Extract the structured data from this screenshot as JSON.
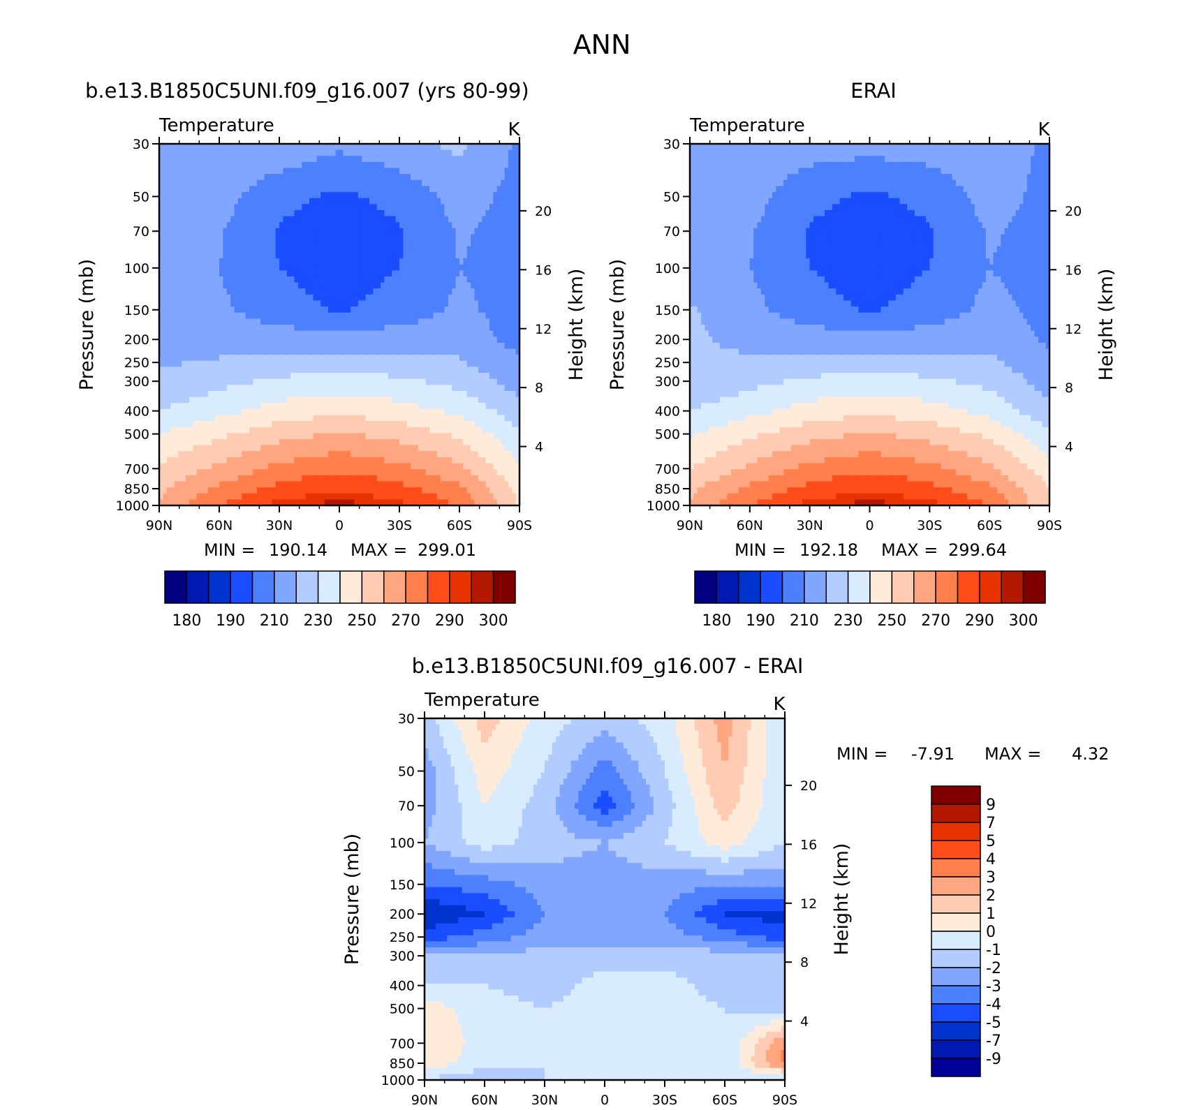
{
  "figure": {
    "title": "ANN"
  },
  "colors": {
    "abs_palette": [
      "#000080",
      "#0019b3",
      "#0033cc",
      "#1a4dff",
      "#4d80ff",
      "#80a6ff",
      "#b3ccff",
      "#d9ebff",
      "#ffebd9",
      "#ffccb3",
      "#ffa680",
      "#ff804d",
      "#ff4d1a",
      "#e63300",
      "#b31900",
      "#800000"
    ],
    "diff_palette": [
      "#000099",
      "#0019b3",
      "#0033cc",
      "#1a4dff",
      "#4d80ff",
      "#80a6ff",
      "#b3ccff",
      "#d9ebff",
      "#ffebd9",
      "#ffccb3",
      "#ffa680",
      "#ff804d",
      "#ff4d1a",
      "#e63300",
      "#b31900",
      "#800000"
    ]
  },
  "axes_common": {
    "var_label": "Temperature",
    "units": "K",
    "ylabel": "Pressure (mb)",
    "y2label": "Height (km)",
    "xticks": [
      "90N",
      "60N",
      "30N",
      "0",
      "30S",
      "60S",
      "90S"
    ],
    "yticks": [
      "30",
      "50",
      "70",
      "100",
      "150",
      "200",
      "250",
      "300",
      "400",
      "500",
      "700",
      "850",
      "1000"
    ],
    "y2ticks": [
      "20",
      "16",
      "12",
      "8",
      "4"
    ]
  },
  "panels": {
    "model": {
      "title": "b.e13.B1850C5UNI.f09_g16.007 (yrs 80-99)",
      "min_label": "MIN =",
      "min_value": "190.14",
      "max_label": "MAX =",
      "max_value": "299.01"
    },
    "obs": {
      "title": "ERAI",
      "min_label": "MIN =",
      "min_value": "192.18",
      "max_label": "MAX =",
      "max_value": "299.64"
    },
    "diff": {
      "title": "b.e13.B1850C5UNI.f09_g16.007 - ERAI",
      "min_label": "MIN =",
      "min_value": "-7.91",
      "max_label": "MAX =",
      "max_value": "4.32"
    }
  },
  "colorbars": {
    "abs_labels": [
      "180",
      "190",
      "210",
      "230",
      "250",
      "270",
      "290",
      "300"
    ],
    "diff_labels": [
      "9",
      "7",
      "5",
      "4",
      "3",
      "2",
      "1",
      "0",
      "-1",
      "-2",
      "-3",
      "-4",
      "-5",
      "-7",
      "-9"
    ]
  },
  "chart_data": [
    {
      "type": "heatmap",
      "title": "b.e13.B1850C5UNI.f09_g16.007 (yrs 80-99)",
      "subtitle": "Temperature",
      "units": "K",
      "xlabel": "",
      "ylabel": "Pressure (mb)",
      "y2label": "Height (km)",
      "x": [
        "90N",
        "60N",
        "30N",
        "0",
        "30S",
        "60S",
        "90S"
      ],
      "y": [
        30,
        50,
        70,
        100,
        150,
        200,
        250,
        300,
        400,
        500,
        700,
        850,
        1000
      ],
      "y_scale": "log",
      "values": [
        [
          215,
          217,
          218,
          212,
          217,
          222,
          208
        ],
        [
          212,
          214,
          203,
          198,
          203,
          214,
          207
        ],
        [
          211,
          211,
          199,
          195,
          199,
          211,
          207
        ],
        [
          212,
          210,
          200,
          195,
          200,
          210,
          207
        ],
        [
          214,
          212,
          204,
          199,
          204,
          212,
          206
        ],
        [
          217,
          216,
          215,
          214,
          215,
          216,
          206
        ],
        [
          219,
          221,
          224,
          225,
          224,
          221,
          212
        ],
        [
          222,
          227,
          232,
          234,
          232,
          227,
          215
        ],
        [
          230,
          237,
          244,
          248,
          244,
          238,
          224
        ],
        [
          240,
          248,
          256,
          261,
          256,
          248,
          232
        ],
        [
          252,
          262,
          273,
          278,
          273,
          262,
          241
        ],
        [
          258,
          272,
          283,
          289,
          283,
          272,
          247
        ],
        [
          261,
          280,
          293,
          298,
          293,
          279,
          249
        ]
      ],
      "min": 190.14,
      "max": 299.01
    },
    {
      "type": "heatmap",
      "title": "ERAI",
      "subtitle": "Temperature",
      "units": "K",
      "xlabel": "",
      "ylabel": "Pressure (mb)",
      "y2label": "Height (km)",
      "x": [
        "90N",
        "60N",
        "30N",
        "0",
        "30S",
        "60S",
        "90S"
      ],
      "y": [
        30,
        50,
        70,
        100,
        150,
        200,
        250,
        300,
        400,
        500,
        700,
        850,
        1000
      ],
      "y_scale": "log",
      "values": [
        [
          216,
          216,
          215,
          214,
          215,
          216,
          208
        ],
        [
          215,
          214,
          203,
          198,
          203,
          214,
          207
        ],
        [
          214,
          211,
          199,
          195,
          199,
          211,
          207
        ],
        [
          214,
          210,
          200,
          195,
          200,
          210,
          206
        ],
        [
          221,
          213,
          204,
          199,
          204,
          213,
          207
        ],
        [
          222,
          217,
          215,
          214,
          215,
          217,
          208
        ],
        [
          221,
          222,
          224,
          225,
          224,
          222,
          213
        ],
        [
          222,
          227,
          232,
          234,
          232,
          227,
          216
        ],
        [
          230,
          237,
          244,
          248,
          244,
          237,
          222
        ],
        [
          239,
          248,
          256,
          261,
          256,
          248,
          232
        ],
        [
          250,
          262,
          273,
          278,
          273,
          262,
          244
        ],
        [
          258,
          272,
          283,
          289,
          283,
          272,
          250
        ],
        [
          261,
          280,
          293,
          298,
          293,
          280,
          250
        ]
      ],
      "min": 192.18,
      "max": 299.64
    },
    {
      "type": "heatmap",
      "title": "b.e13.B1850C5UNI.f09_g16.007 - ERAI",
      "subtitle": "Temperature",
      "units": "K",
      "xlabel": "",
      "ylabel": "Pressure (mb)",
      "y2label": "Height (km)",
      "x": [
        "90N",
        "60N",
        "30N",
        "0",
        "30S",
        "60S",
        "90S"
      ],
      "y": [
        30,
        50,
        70,
        100,
        150,
        200,
        250,
        300,
        400,
        500,
        700,
        850,
        1000
      ],
      "y_scale": "log",
      "values": [
        [
          -1.5,
          1.5,
          -0.5,
          -1.5,
          -0.5,
          2.5,
          -1.0
        ],
        [
          -2.5,
          0.5,
          -1.0,
          -3.5,
          -1.0,
          2.0,
          -1.0
        ],
        [
          -2.5,
          0.0,
          -1.5,
          -4.5,
          -1.5,
          1.5,
          -1.0
        ],
        [
          -2.0,
          -0.5,
          -1.5,
          -2.0,
          -1.0,
          0.5,
          -1.0
        ],
        [
          -4.0,
          -3.5,
          -2.5,
          -2.5,
          -2.5,
          -3.0,
          -2.5
        ],
        [
          -6.0,
          -5.0,
          -3.0,
          -2.5,
          -3.0,
          -5.0,
          -5.5
        ],
        [
          -4.5,
          -3.5,
          -2.5,
          -2.5,
          -2.5,
          -3.5,
          -4.5
        ],
        [
          -2.0,
          -2.0,
          -1.5,
          -1.5,
          -1.5,
          -1.5,
          -2.0
        ],
        [
          -1.0,
          -1.0,
          -1.5,
          -0.5,
          -0.5,
          -1.5,
          -1.5
        ],
        [
          0.5,
          -0.5,
          -1.0,
          -0.5,
          -0.5,
          -1.0,
          -1.5
        ],
        [
          1.0,
          -0.5,
          -1.0,
          -0.5,
          -0.5,
          -1.0,
          3.0
        ],
        [
          0.5,
          -0.5,
          -1.0,
          -0.5,
          -0.5,
          -1.0,
          3.5
        ],
        [
          -1.0,
          -2.0,
          -1.0,
          -0.5,
          -0.5,
          -1.0,
          -1.5
        ]
      ],
      "min": -7.91,
      "max": 4.32
    }
  ]
}
